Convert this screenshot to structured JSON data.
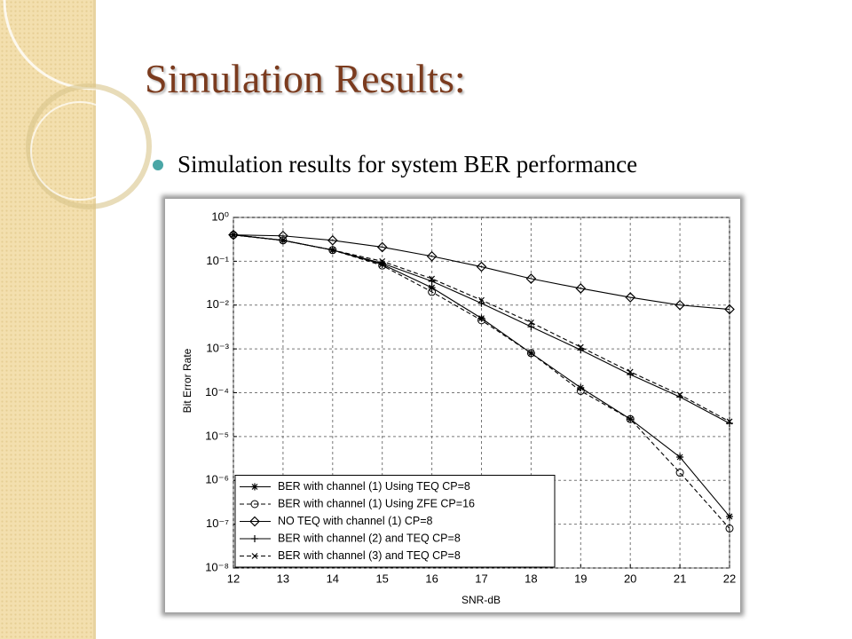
{
  "header": {
    "title": "Simulation Results:"
  },
  "bullet": "Simulation results for system BER performance",
  "chart_data": {
    "type": "line",
    "xlabel": "SNR-dB",
    "ylabel": "Bit Error Rate",
    "x": [
      12,
      13,
      14,
      15,
      16,
      17,
      18,
      19,
      20,
      21,
      22
    ],
    "xlim": [
      12,
      22
    ],
    "xticks": [
      12,
      13,
      14,
      15,
      16,
      17,
      18,
      19,
      20,
      21,
      22
    ],
    "ylim": [
      1e-08,
      1
    ],
    "yscale": "log",
    "yticks": [
      {
        "value": 1,
        "label": "10⁰"
      },
      {
        "value": 0.1,
        "label": "10⁻¹"
      },
      {
        "value": 0.01,
        "label": "10⁻²"
      },
      {
        "value": 0.001,
        "label": "10⁻³"
      },
      {
        "value": 0.0001,
        "label": "10⁻⁴"
      },
      {
        "value": 1e-05,
        "label": "10⁻⁵"
      },
      {
        "value": 1e-06,
        "label": "10⁻⁶"
      },
      {
        "value": 1e-07,
        "label": "10⁻⁷"
      },
      {
        "value": 1e-08,
        "label": "10⁻⁸"
      }
    ],
    "grid": true,
    "legend": "lower left",
    "series": [
      {
        "name": "BER with channel (1) Using TEQ CP=8",
        "color": "#000000",
        "marker": "asterisk",
        "line_style": "solid",
        "values": [
          0.4,
          0.3,
          0.18,
          0.085,
          0.025,
          0.005,
          0.0008,
          0.00013,
          2.5e-05,
          3.4e-06,
          1.5e-07
        ]
      },
      {
        "name": "BER with channel (1) Using ZFE CP=16",
        "color": "#000000",
        "marker": "circle",
        "line_style": "dashed",
        "values": [
          0.4,
          0.3,
          0.18,
          0.08,
          0.02,
          0.0045,
          0.0008,
          0.00011,
          2.5e-05,
          1.5e-06,
          8e-08
        ]
      },
      {
        "name": "NO TEQ with channel (1) CP=8",
        "color": "#000000",
        "marker": "diamond",
        "line_style": "solid",
        "values": [
          0.4,
          0.38,
          0.3,
          0.21,
          0.13,
          0.075,
          0.04,
          0.024,
          0.015,
          0.01,
          0.008
        ]
      },
      {
        "name": "BER with channel (2) and TEQ CP=8",
        "color": "#000000",
        "marker": "plus",
        "line_style": "solid",
        "values": [
          0.4,
          0.3,
          0.18,
          0.09,
          0.035,
          0.011,
          0.0032,
          0.00095,
          0.00026,
          8e-05,
          2e-05
        ]
      },
      {
        "name": "BER with channel (3) and TEQ CP=8",
        "color": "#000000",
        "marker": "x",
        "line_style": "dashed",
        "values": [
          0.4,
          0.3,
          0.18,
          0.1,
          0.04,
          0.013,
          0.004,
          0.0011,
          0.0003,
          9e-05,
          2.2e-05
        ]
      }
    ]
  }
}
